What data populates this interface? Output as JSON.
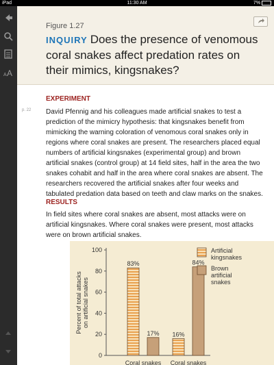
{
  "status_bar": {
    "carrier": "iPad",
    "time": "11:30 AM",
    "battery": "7%"
  },
  "sidebar": {
    "icons": [
      "back-arrow-icon",
      "search-icon",
      "notes-icon",
      "font-size-icon",
      "scroll-up-icon",
      "scroll-down-icon"
    ]
  },
  "header": {
    "figure_label": "Figure 1.27",
    "inquiry_label": "INQUIRY",
    "title": "Does the presence of venomous coral snakes affect predation rates on their mimics, kingsnakes?"
  },
  "content": {
    "page_ref": "p. 22",
    "experiment_heading": "EXPERIMENT",
    "experiment_text": "David Pfennig and his colleagues made artificial snakes to test a prediction of the mimicry hypothesis: that kingsnakes benefit from mimicking the warning coloration of venomous coral snakes only in regions where coral snakes are present. The researchers placed equal numbers of artificial kingsnakes (experimental group) and brown artificial snakes (control group) at 14 field sites, half in the area the two snakes cohabit and half in the area where coral snakes are absent. The researchers recovered the artificial snakes after four weeks and tabulated predation data based on teeth and claw marks on the snakes.",
    "results_heading": "RESULTS",
    "results_text": "In field sites where coral snakes are absent, most attacks were on artificial kingsnakes. Where coral snakes were present, most attacks were on brown artificial snakes."
  },
  "chart_data": {
    "type": "bar",
    "ylabel_line1": "Percent of total attacks",
    "ylabel_line2": "on artificial snakes",
    "ylim": [
      0,
      100
    ],
    "yticks": [
      "0",
      "20",
      "40",
      "60",
      "80",
      "100"
    ],
    "categories": [
      "Coral snakes",
      "Coral snakes"
    ],
    "series": [
      {
        "name": "Artificial kingsnakes",
        "name_line1": "Artificial",
        "name_line2": "kingsnakes",
        "values": [
          83,
          16
        ],
        "labels": [
          "83%",
          "16%"
        ],
        "color": "#e9a14f"
      },
      {
        "name": "Brown artificial snakes",
        "name_line1": "Brown",
        "name_line2": "artificial",
        "name_line3": "snakes",
        "values": [
          17,
          84
        ],
        "labels": [
          "17%",
          "84%"
        ],
        "color": "#c6a079"
      }
    ],
    "legend_position": "top-right",
    "grid": false
  }
}
